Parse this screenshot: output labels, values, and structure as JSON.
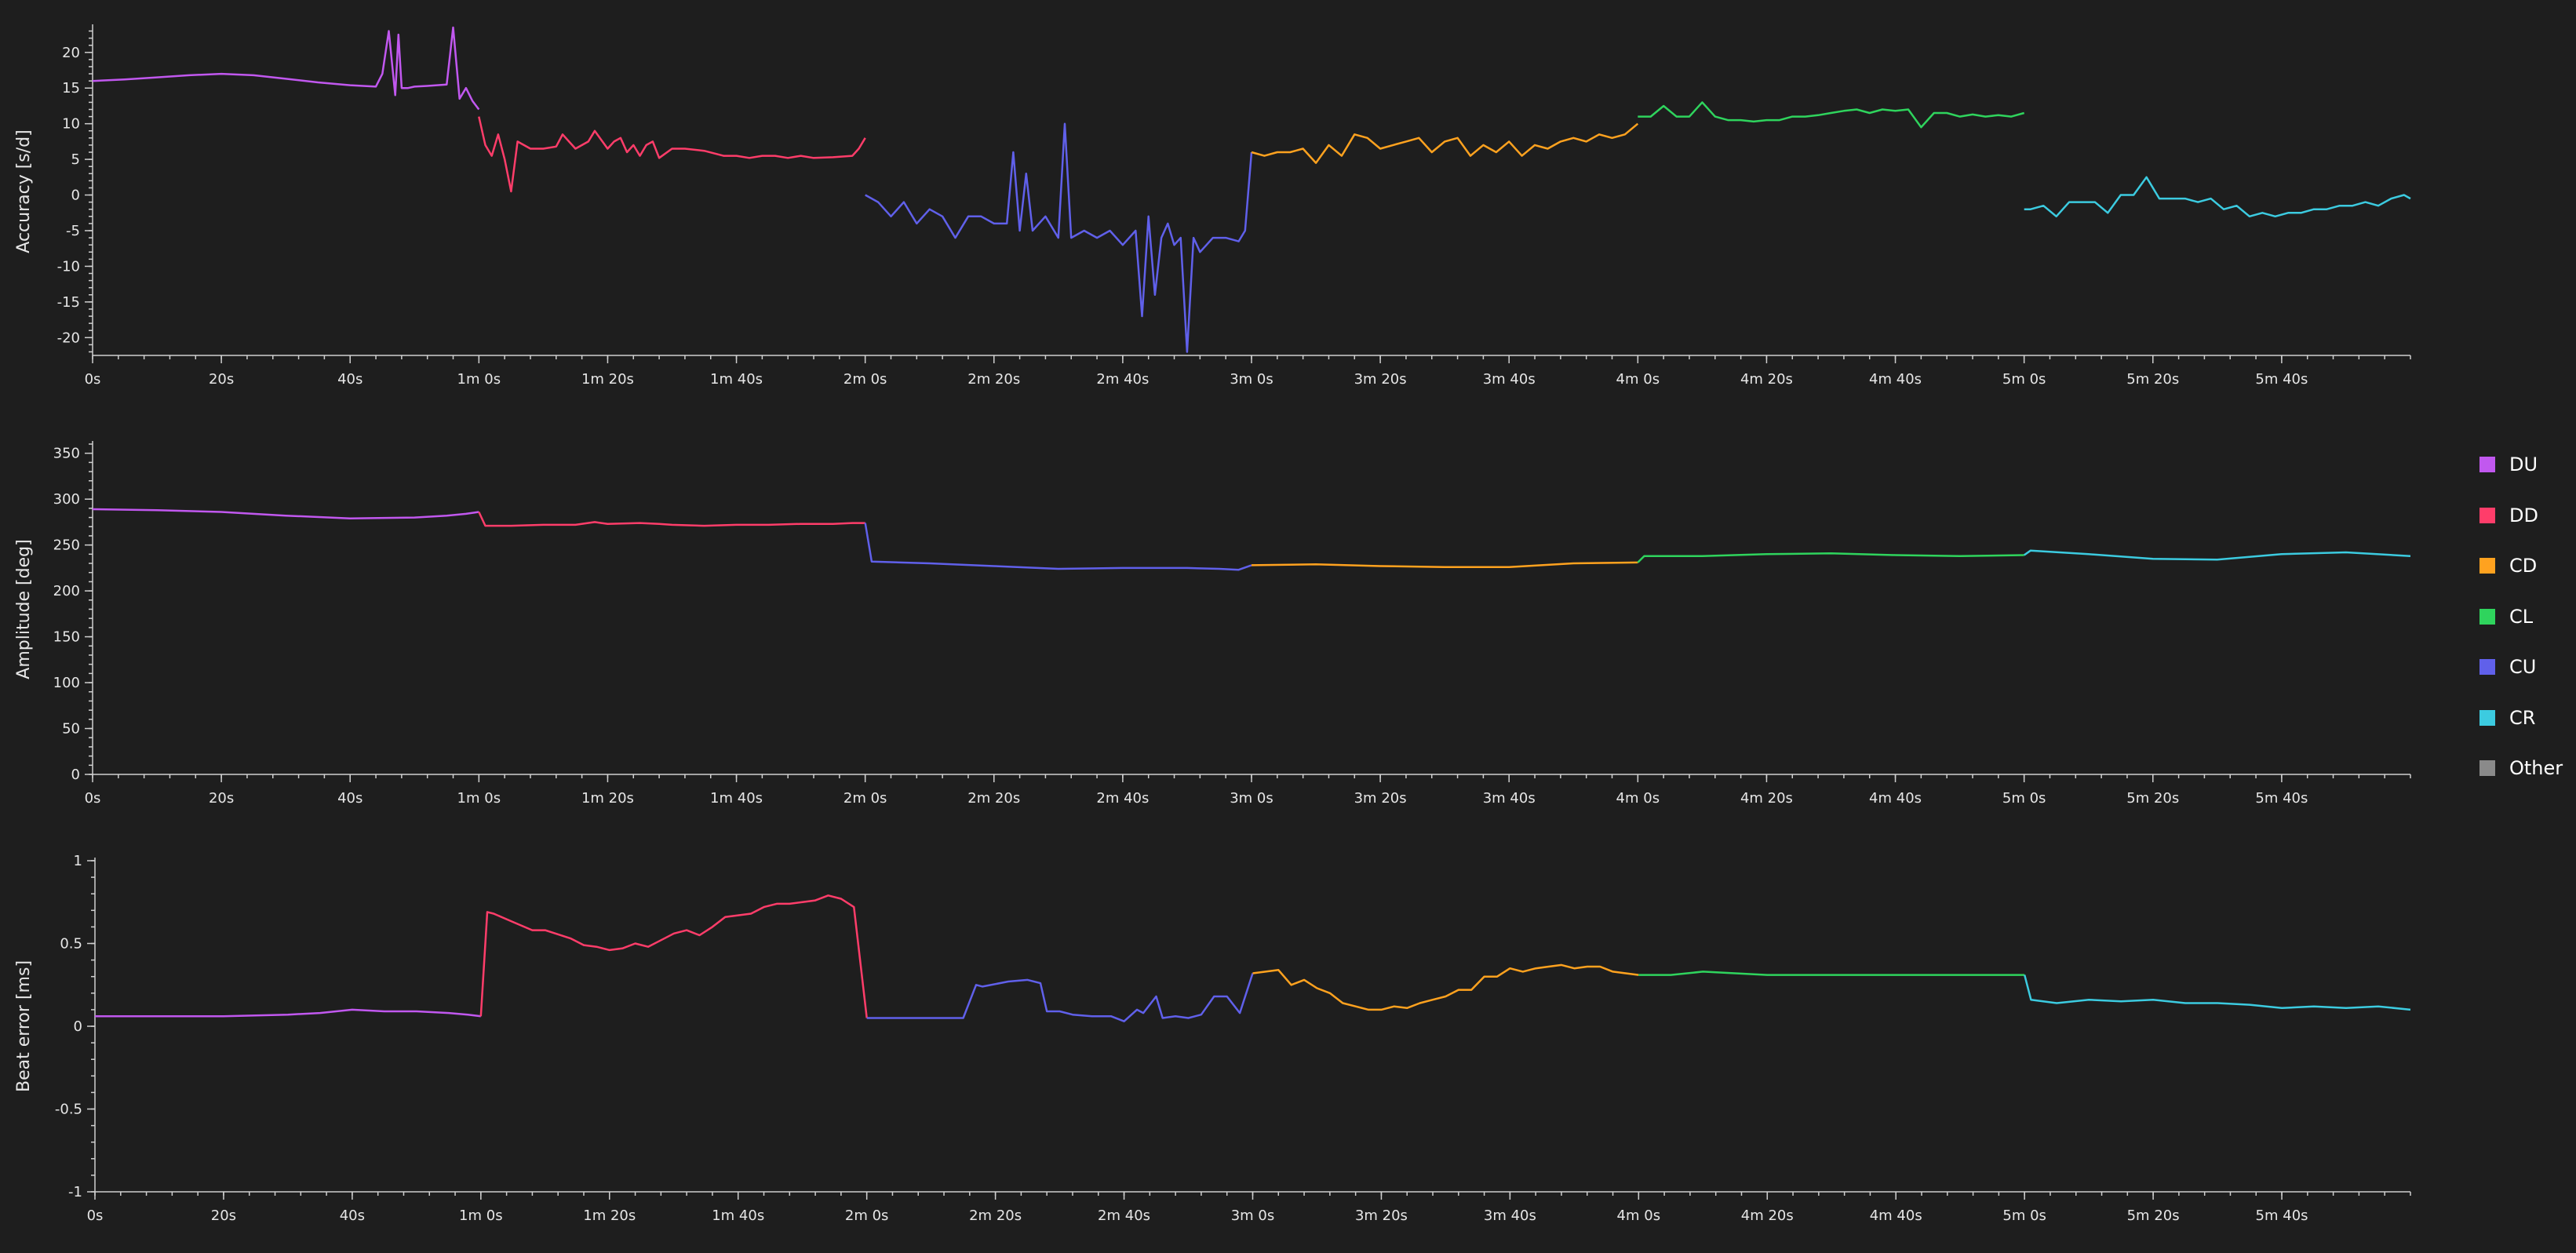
{
  "colors": {
    "DU": "#c158ef",
    "DD": "#ff3d6a",
    "CD": "#ffa21f",
    "CL": "#2fd45d",
    "CU": "#6060ea",
    "CR": "#3ccbe0",
    "Other": "#8a8a8a"
  },
  "legend": [
    {
      "key": "DU",
      "label": "DU"
    },
    {
      "key": "DD",
      "label": "DD"
    },
    {
      "key": "CD",
      "label": "CD"
    },
    {
      "key": "CL",
      "label": "CL"
    },
    {
      "key": "CU",
      "label": "CU"
    },
    {
      "key": "CR",
      "label": "CR"
    },
    {
      "key": "Other",
      "label": "Other"
    }
  ],
  "chart_data": [
    {
      "type": "line",
      "ylabel": "Accuracy [s/d]",
      "xlabel": "",
      "xlim": [
        0,
        360
      ],
      "ylim": [
        -22.5,
        23.5
      ],
      "yticks": [
        -20,
        -15,
        -10,
        -5,
        0,
        5,
        10,
        15,
        20
      ],
      "yticklabels": [
        "-20",
        "-15",
        "-10",
        "-5",
        "0",
        "5",
        "10",
        "15",
        "20"
      ],
      "xticks": [
        0,
        20,
        40,
        60,
        80,
        100,
        120,
        140,
        160,
        180,
        200,
        220,
        240,
        260,
        280,
        300,
        320,
        340
      ],
      "xticklabels": [
        "0s",
        "20s",
        "40s",
        "1m 0s",
        "1m 20s",
        "1m 40s",
        "2m 0s",
        "2m 20s",
        "2m 40s",
        "3m 0s",
        "3m 20s",
        "3m 40s",
        "4m 0s",
        "4m 20s",
        "4m 40s",
        "5m 0s",
        "5m 20s",
        "5m 40s"
      ],
      "series": [
        {
          "key": "DU",
          "x": [
            0,
            5,
            10,
            15,
            20,
            25,
            30,
            35,
            40,
            44,
            45,
            46,
            47,
            47.5,
            48,
            49,
            50,
            52,
            55,
            56,
            57,
            58,
            59,
            60
          ],
          "y": [
            16,
            16.2,
            16.5,
            16.8,
            17,
            16.8,
            16.3,
            15.8,
            15.4,
            15.2,
            17,
            23,
            14,
            22.5,
            15,
            15,
            15.2,
            15.3,
            15.5,
            23.5,
            13.5,
            15,
            13.2,
            12
          ]
        },
        {
          "key": "DD",
          "x": [
            60,
            61,
            62,
            63,
            64,
            65,
            66,
            68,
            70,
            72,
            73,
            75,
            77,
            78,
            80,
            81,
            82,
            83,
            84,
            85,
            86,
            87,
            88,
            90,
            92,
            95,
            98,
            100,
            102,
            104,
            106,
            108,
            110,
            112,
            115,
            118,
            119,
            120
          ],
          "y": [
            11,
            7,
            5.5,
            8.5,
            5,
            0.5,
            7.5,
            6.5,
            6.5,
            6.8,
            8.5,
            6.5,
            7.5,
            9,
            6.5,
            7.5,
            8,
            6,
            7,
            5.5,
            7,
            7.5,
            5.2,
            6.5,
            6.5,
            6.2,
            5.5,
            5.5,
            5.2,
            5.5,
            5.5,
            5.2,
            5.5,
            5.2,
            5.3,
            5.5,
            6.5,
            8
          ]
        },
        {
          "key": "CU",
          "x": [
            120,
            122,
            124,
            126,
            128,
            130,
            132,
            134,
            136,
            138,
            140,
            142,
            143,
            144,
            145,
            146,
            148,
            150,
            151,
            152,
            154,
            156,
            158,
            160,
            162,
            163,
            164,
            165,
            166,
            167,
            168,
            169,
            170,
            171,
            172,
            173,
            174,
            176,
            178,
            179,
            180
          ],
          "y": [
            0,
            -1,
            -3,
            -1,
            -4,
            -2,
            -3,
            -6,
            -3,
            -3,
            -4,
            -4,
            6,
            -5,
            3,
            -5,
            -3,
            -6,
            10,
            -6,
            -5,
            -6,
            -5,
            -7,
            -5,
            -17,
            -3,
            -14,
            -6,
            -4,
            -7,
            -6,
            -22,
            -6,
            -8,
            -7,
            -6,
            -6,
            -6.5,
            -5,
            6
          ]
        },
        {
          "key": "CD",
          "x": [
            180,
            182,
            184,
            186,
            188,
            190,
            192,
            194,
            196,
            198,
            200,
            202,
            204,
            206,
            208,
            210,
            212,
            214,
            216,
            218,
            220,
            222,
            224,
            226,
            228,
            230,
            232,
            234,
            236,
            238,
            240
          ],
          "y": [
            6,
            5.5,
            6,
            6,
            6.5,
            4.5,
            7,
            5.5,
            8.5,
            8,
            6.5,
            7,
            7.5,
            8,
            6,
            7.5,
            8,
            5.5,
            7,
            6,
            7.5,
            5.5,
            7,
            6.5,
            7.5,
            8,
            7.5,
            8.5,
            8,
            8.5,
            10
          ]
        },
        {
          "key": "CL",
          "x": [
            240,
            242,
            244,
            246,
            248,
            250,
            252,
            254,
            256,
            258,
            260,
            262,
            264,
            266,
            268,
            270,
            272,
            274,
            276,
            278,
            280,
            282,
            284,
            286,
            288,
            290,
            292,
            294,
            296,
            298,
            300
          ],
          "y": [
            11,
            11,
            12.5,
            11,
            11,
            13,
            11,
            10.5,
            10.5,
            10.3,
            10.5,
            10.5,
            11,
            11,
            11.2,
            11.5,
            11.8,
            12,
            11.5,
            12,
            11.8,
            12,
            9.5,
            11.5,
            11.5,
            11,
            11.3,
            11,
            11.2,
            11,
            11.5
          ]
        },
        {
          "key": "CR",
          "x": [
            300,
            301,
            303,
            305,
            307,
            309,
            311,
            313,
            315,
            317,
            319,
            321,
            323,
            325,
            327,
            329,
            331,
            333,
            335,
            337,
            339,
            341,
            343,
            345,
            347,
            349,
            351,
            353,
            355,
            357,
            359,
            360
          ],
          "y": [
            -2,
            -2,
            -1.5,
            -3,
            -1,
            -1,
            -1,
            -2.5,
            0,
            0,
            2.5,
            -0.5,
            -0.5,
            -0.5,
            -1,
            -0.5,
            -2,
            -1.5,
            -3,
            -2.5,
            -3,
            -2.5,
            -2.5,
            -2,
            -2,
            -1.5,
            -1.5,
            -1,
            -1.5,
            -0.5,
            0,
            -0.5
          ]
        }
      ]
    },
    {
      "type": "line",
      "ylabel": "Amplitude [deg]",
      "xlabel": "",
      "xlim": [
        0,
        360
      ],
      "ylim": [
        0,
        360
      ],
      "yticks": [
        0,
        50,
        100,
        150,
        200,
        250,
        300,
        350
      ],
      "yticklabels": [
        "0",
        "50",
        "100",
        "150",
        "200",
        "250",
        "300",
        "350"
      ],
      "xticks": [
        0,
        20,
        40,
        60,
        80,
        100,
        120,
        140,
        160,
        180,
        200,
        220,
        240,
        260,
        280,
        300,
        320,
        340
      ],
      "xticklabels": [
        "0s",
        "20s",
        "40s",
        "1m 0s",
        "1m 20s",
        "1m 40s",
        "2m 0s",
        "2m 20s",
        "2m 40s",
        "3m 0s",
        "3m 20s",
        "3m 40s",
        "4m 0s",
        "4m 20s",
        "4m 40s",
        "5m 0s",
        "5m 20s",
        "5m 40s"
      ],
      "series": [
        {
          "key": "DU",
          "x": [
            0,
            10,
            20,
            30,
            40,
            50,
            55,
            58,
            60
          ],
          "y": [
            289,
            288,
            286,
            282,
            279,
            280,
            282,
            284,
            286
          ]
        },
        {
          "key": "DD",
          "x": [
            60,
            61,
            65,
            70,
            75,
            78,
            80,
            85,
            88,
            90,
            95,
            100,
            105,
            110,
            115,
            118,
            120
          ],
          "y": [
            286,
            271,
            271,
            272,
            272,
            275,
            273,
            274,
            273,
            272,
            271,
            272,
            272,
            273,
            273,
            274,
            274
          ]
        },
        {
          "key": "CU",
          "x": [
            120,
            121,
            130,
            140,
            150,
            160,
            170,
            175,
            178,
            180
          ],
          "y": [
            274,
            232,
            230,
            227,
            224,
            225,
            225,
            224,
            223,
            228
          ]
        },
        {
          "key": "CD",
          "x": [
            180,
            190,
            200,
            210,
            220,
            230,
            240
          ],
          "y": [
            228,
            229,
            227,
            226,
            226,
            230,
            231
          ]
        },
        {
          "key": "CL",
          "x": [
            240,
            241,
            250,
            260,
            270,
            280,
            290,
            300
          ],
          "y": [
            231,
            238,
            238,
            240,
            241,
            239,
            238,
            239
          ]
        },
        {
          "key": "CR",
          "x": [
            300,
            301,
            310,
            320,
            330,
            340,
            350,
            360
          ],
          "y": [
            239,
            244,
            240,
            235,
            234,
            240,
            242,
            238
          ]
        }
      ]
    },
    {
      "type": "line",
      "ylabel": "Beat error [ms]",
      "xlabel": "",
      "xlim": [
        0,
        360
      ],
      "ylim": [
        -1,
        1
      ],
      "yticks": [
        -1,
        -0.5,
        0,
        0.5,
        1
      ],
      "yticklabels": [
        "-1",
        "-0.5",
        "0",
        "0.5",
        "1"
      ],
      "xticks": [
        0,
        20,
        40,
        60,
        80,
        100,
        120,
        140,
        160,
        180,
        200,
        220,
        240,
        260,
        280,
        300,
        320,
        340
      ],
      "xticklabels": [
        "0s",
        "20s",
        "40s",
        "1m 0s",
        "1m 20s",
        "1m 40s",
        "2m 0s",
        "2m 20s",
        "2m 40s",
        "3m 0s",
        "3m 20s",
        "3m 40s",
        "4m 0s",
        "4m 20s",
        "4m 40s",
        "5m 0s",
        "5m 20s",
        "5m 40s"
      ],
      "series": [
        {
          "key": "DU",
          "x": [
            0,
            10,
            20,
            30,
            35,
            40,
            45,
            50,
            55,
            58,
            60
          ],
          "y": [
            0.06,
            0.06,
            0.06,
            0.07,
            0.08,
            0.1,
            0.09,
            0.09,
            0.08,
            0.07,
            0.06
          ]
        },
        {
          "key": "DD",
          "x": [
            60,
            61,
            62,
            65,
            68,
            70,
            74,
            76,
            78,
            80,
            82,
            84,
            86,
            88,
            90,
            92,
            94,
            96,
            98,
            100,
            102,
            104,
            106,
            108,
            110,
            112,
            114,
            116,
            118,
            120
          ],
          "y": [
            0.06,
            0.69,
            0.68,
            0.63,
            0.58,
            0.58,
            0.53,
            0.49,
            0.48,
            0.46,
            0.47,
            0.5,
            0.48,
            0.52,
            0.56,
            0.58,
            0.55,
            0.6,
            0.66,
            0.67,
            0.68,
            0.72,
            0.74,
            0.74,
            0.75,
            0.76,
            0.79,
            0.77,
            0.72,
            0.05
          ]
        },
        {
          "key": "CU",
          "x": [
            120,
            125,
            130,
            135,
            137,
            138,
            142,
            145,
            147,
            148,
            150,
            152,
            155,
            158,
            160,
            162,
            163,
            165,
            166,
            168,
            170,
            172,
            174,
            176,
            178,
            180
          ],
          "y": [
            0.05,
            0.05,
            0.05,
            0.05,
            0.25,
            0.24,
            0.27,
            0.28,
            0.26,
            0.09,
            0.09,
            0.07,
            0.06,
            0.06,
            0.03,
            0.1,
            0.08,
            0.18,
            0.05,
            0.06,
            0.05,
            0.07,
            0.18,
            0.18,
            0.08,
            0.32
          ]
        },
        {
          "key": "CD",
          "x": [
            180,
            182,
            184,
            186,
            188,
            190,
            192,
            194,
            196,
            198,
            200,
            202,
            204,
            206,
            208,
            210,
            212,
            214,
            216,
            218,
            220,
            222,
            224,
            226,
            228,
            230,
            232,
            234,
            236,
            238,
            240
          ],
          "y": [
            0.32,
            0.33,
            0.34,
            0.25,
            0.28,
            0.23,
            0.2,
            0.14,
            0.12,
            0.1,
            0.1,
            0.12,
            0.11,
            0.14,
            0.16,
            0.18,
            0.22,
            0.22,
            0.3,
            0.3,
            0.35,
            0.33,
            0.35,
            0.36,
            0.37,
            0.35,
            0.36,
            0.36,
            0.33,
            0.32,
            0.31
          ]
        },
        {
          "key": "CL",
          "x": [
            240,
            245,
            250,
            255,
            260,
            270,
            280,
            290,
            300
          ],
          "y": [
            0.31,
            0.31,
            0.33,
            0.32,
            0.31,
            0.31,
            0.31,
            0.31,
            0.31
          ]
        },
        {
          "key": "CR",
          "x": [
            300,
            301,
            305,
            310,
            315,
            320,
            325,
            330,
            335,
            340,
            345,
            350,
            355,
            360
          ],
          "y": [
            0.31,
            0.16,
            0.14,
            0.16,
            0.15,
            0.16,
            0.14,
            0.14,
            0.13,
            0.11,
            0.12,
            0.11,
            0.12,
            0.1
          ]
        }
      ]
    }
  ]
}
